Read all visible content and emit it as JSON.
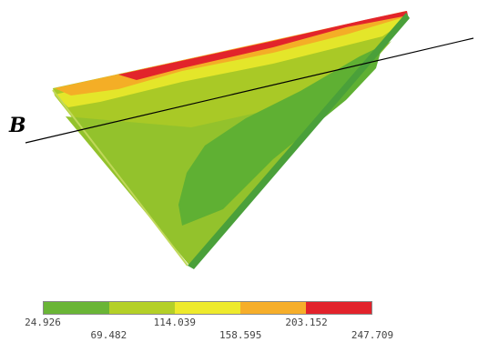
{
  "diagram": {
    "section_label": "B",
    "colors": {
      "outline": "#8fbf2c",
      "base_yellow_green": "#a9c926",
      "light_green": "#93c22c",
      "dark_green": "#5fb033",
      "yellow": "#e4e62a",
      "orange": "#f4ae26",
      "red": "#e2242b",
      "edge_green": "#4aa03a",
      "section_line": "#000000"
    }
  },
  "legend": {
    "colors": [
      "#6ab536",
      "#b4d027",
      "#eeea2c",
      "#f6ae2a",
      "#e2222b"
    ],
    "tick_labels": [
      "24.926",
      "69.482",
      "114.039",
      "158.595",
      "203.152",
      "247.709"
    ]
  }
}
